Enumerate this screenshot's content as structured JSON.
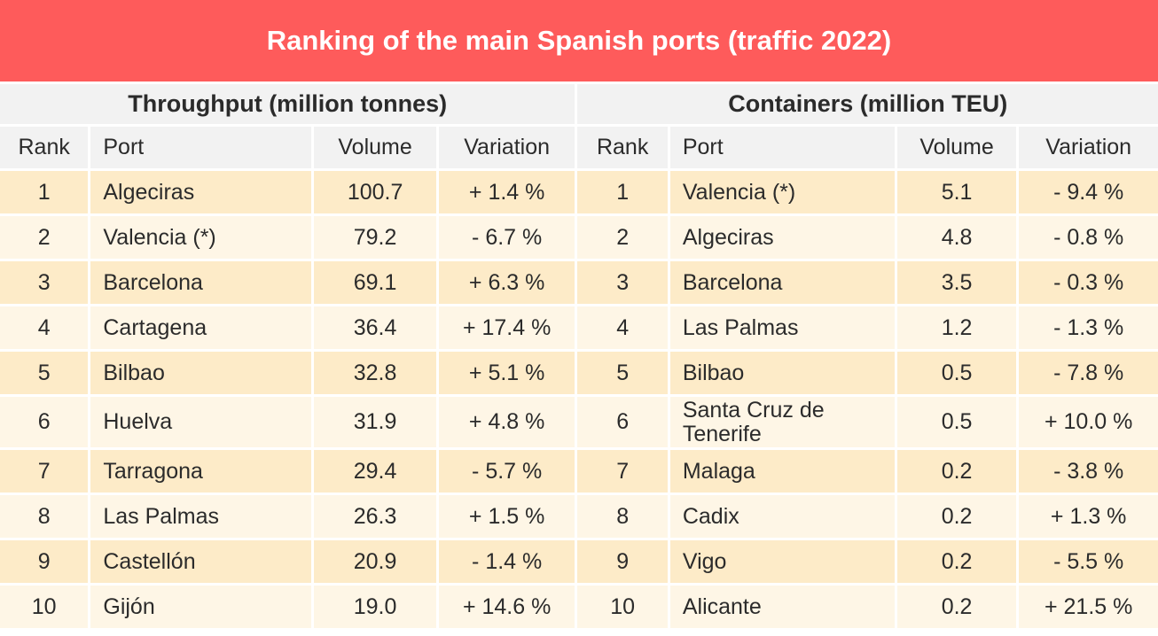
{
  "title": "Ranking of the main Spanish ports (traffic 2022)",
  "colors": {
    "title_bg": "#fe5b5b",
    "header_bg": "#f2f2f2",
    "row_odd": "#fdebc8",
    "row_even": "#fef6e6"
  },
  "throughput": {
    "heading": "Throughput (million tonnes)",
    "columns": [
      "Rank",
      "Port",
      "Volume",
      "Variation"
    ],
    "rows": [
      [
        "1",
        "Algeciras",
        "100.7",
        "+ 1.4 %"
      ],
      [
        "2",
        "Valencia (*)",
        "79.2",
        "- 6.7 %"
      ],
      [
        "3",
        "Barcelona",
        "69.1",
        "+ 6.3 %"
      ],
      [
        "4",
        "Cartagena",
        "36.4",
        "+ 17.4 %"
      ],
      [
        "5",
        "Bilbao",
        "32.8",
        "+ 5.1 %"
      ],
      [
        "6",
        "Huelva",
        "31.9",
        "+ 4.8 %"
      ],
      [
        "7",
        "Tarragona",
        "29.4",
        "- 5.7 %"
      ],
      [
        "8",
        "Las Palmas",
        "26.3",
        "+ 1.5 %"
      ],
      [
        "9",
        "Castellón",
        "20.9",
        "- 1.4 %"
      ],
      [
        "10",
        "Gijón",
        "19.0",
        "+ 14.6 %"
      ]
    ]
  },
  "containers": {
    "heading": "Containers (million TEU)",
    "columns": [
      "Rank",
      "Port",
      "Volume",
      "Variation"
    ],
    "rows": [
      [
        "1",
        "Valencia (*)",
        "5.1",
        "- 9.4 %"
      ],
      [
        "2",
        "Algeciras",
        "4.8",
        "- 0.8 %"
      ],
      [
        "3",
        "Barcelona",
        "3.5",
        "- 0.3 %"
      ],
      [
        "4",
        "Las Palmas",
        "1.2",
        "- 1.3 %"
      ],
      [
        "5",
        "Bilbao",
        "0.5",
        "- 7.8 %"
      ],
      [
        "6",
        "Santa Cruz de Tenerife",
        "0.5",
        "+ 10.0 %"
      ],
      [
        "7",
        "Malaga",
        "0.2",
        "- 3.8 %"
      ],
      [
        "8",
        "Cadix",
        "0.2",
        "+ 1.3 %"
      ],
      [
        "9",
        "Vigo",
        "0.2",
        "- 5.5 %"
      ],
      [
        "10",
        "Alicante",
        "0.2",
        "+ 21.5 %"
      ]
    ]
  }
}
